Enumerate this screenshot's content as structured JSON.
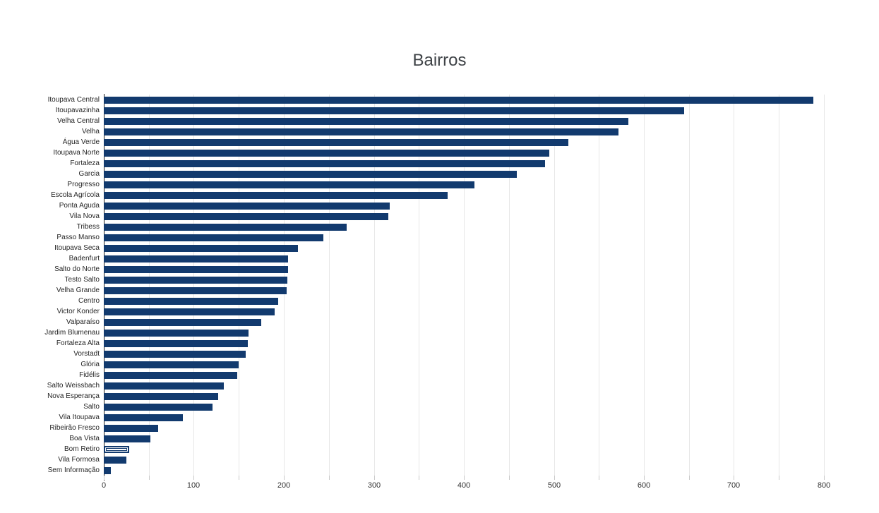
{
  "title": "Bairros",
  "colors": {
    "bar": "#123a6e",
    "selected_bar_inner": "#ffffff",
    "title_text": "#3f4347",
    "category_label_text": "#252525",
    "x_tick_label_text": "#333333",
    "gridline": "#e7e7e7",
    "axis_line": "#1a1a1a",
    "tick_mark": "#c9c9c9",
    "background": "#ffffff"
  },
  "chart_data": {
    "type": "bar",
    "orientation": "horizontal",
    "title": "Bairros",
    "xlabel": "",
    "ylabel": "",
    "grid": true,
    "legend": false,
    "xlim": [
      0,
      810
    ],
    "x_minor_tick_step": 50,
    "x_label_tick_step": 100,
    "x_tick_labels": [
      "0",
      "100",
      "200",
      "300",
      "400",
      "500",
      "600",
      "700",
      "800"
    ],
    "selected_category": "Bom Retiro",
    "categories": [
      "Itoupava Central",
      "Itoupavazinha",
      "Velha Central",
      "Velha",
      "Água Verde",
      "Itoupava Norte",
      "Fortaleza",
      "Garcia",
      "Progresso",
      "Escola Agrícola",
      "Ponta Aguda",
      "Vila Nova",
      "Tribess",
      "Passo Manso",
      "Itoupava Seca",
      "Badenfurt",
      "Salto do Norte",
      "Testo Salto",
      "Velha Grande",
      "Centro",
      "Victor Konder",
      "Valparaíso",
      "Jardim Blumenau",
      "Fortaleza Alta",
      "Vorstadt",
      "Glória",
      "Fidélis",
      "Salto Weissbach",
      "Nova Esperança",
      "Salto",
      "Vila Itoupava",
      "Ribeirão Fresco",
      "Boa Vista",
      "Bom Retiro",
      "Vila Formosa",
      "Sem Informação"
    ],
    "values": [
      788,
      645,
      583,
      572,
      516,
      495,
      490,
      459,
      412,
      382,
      318,
      316,
      270,
      244,
      216,
      205,
      205,
      204,
      203,
      194,
      190,
      175,
      161,
      160,
      158,
      150,
      148,
      133,
      127,
      121,
      88,
      60,
      52,
      28,
      25,
      8
    ]
  }
}
